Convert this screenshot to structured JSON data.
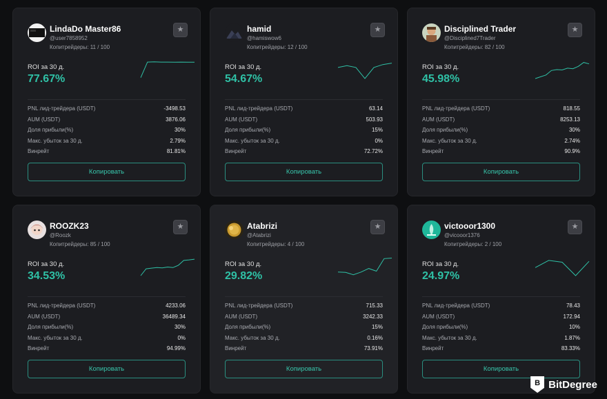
{
  "labels": {
    "roi": "ROI за 30 д.",
    "pnl": "PNL лид-трейдера (USDT)",
    "aum": "AUM (USDT)",
    "profit_share": "Доля прибыли(%)",
    "max_drawdown": "Макс. убыток за 30 д.",
    "win_rate": "Винрейт",
    "copy_button": "Копировать"
  },
  "icons": {
    "favorite": "star-icon"
  },
  "colors": {
    "accent": "#2fc1a6",
    "card": "#1c1d21",
    "background": "#0e0f11"
  },
  "traders": [
    {
      "name": "LindaDo Master86",
      "handle": "@user7858952",
      "copiers": "Копитрейдеры: 11 / 100",
      "roi": "77.67%",
      "pnl": "-3498.53",
      "aum": "3876.06",
      "profit_share": "30%",
      "max_drawdown": "2.79%",
      "win_rate": "81.81%",
      "sparkline": [
        0.05,
        0.92,
        0.93,
        0.92,
        0.92,
        0.91,
        0.92,
        0.91,
        0.91
      ],
      "avatar": "avatar-dark-screen",
      "highlighted": false
    },
    {
      "name": "hamid",
      "handle": "@hamiswow6",
      "copiers": "Копитрейдеры: 12 / 100",
      "roi": "54.67%",
      "pnl": "63.14",
      "aum": "503.93",
      "profit_share": "15%",
      "max_drawdown": "0%",
      "win_rate": "72.72%",
      "sparkline": [
        0.62,
        0.72,
        0.62,
        0.0,
        0.62,
        0.78,
        0.86
      ],
      "avatar": "avatar-dark-mountain",
      "highlighted": false
    },
    {
      "name": "Disciplined Trader",
      "handle": "@Disciplined7Trader",
      "copiers": "Копитрейдеры: 82 / 100",
      "roi": "45.98%",
      "pnl": "818.55",
      "aum": "8253.13",
      "profit_share": "30%",
      "max_drawdown": "2.74%",
      "win_rate": "90.9%",
      "sparkline": [
        0.0,
        0.1,
        0.2,
        0.45,
        0.5,
        0.48,
        0.58,
        0.55,
        0.68,
        0.9,
        0.82
      ],
      "avatar": "avatar-portrait",
      "highlighted": false
    },
    {
      "name": "ROOZK23",
      "handle": "@Roozk",
      "copiers": "Копитрейдеры: 85 / 100",
      "roi": "34.53%",
      "pnl": "4233.06",
      "aum": "36489.34",
      "profit_share": "30%",
      "max_drawdown": "0%",
      "win_rate": "94.99%",
      "sparkline": [
        0.0,
        0.38,
        0.42,
        0.45,
        0.43,
        0.48,
        0.45,
        0.58,
        0.85,
        0.88,
        0.92
      ],
      "avatar": "avatar-anime",
      "highlighted": false
    },
    {
      "name": "Atabrizi",
      "handle": "@Atabrizi",
      "copiers": "Копитрейдеры: 4 / 100",
      "roi": "29.82%",
      "pnl": "715.33",
      "aum": "3242.33",
      "profit_share": "15%",
      "max_drawdown": "0.16%",
      "win_rate": "73.91%",
      "sparkline": [
        0.2,
        0.18,
        0.05,
        0.2,
        0.4,
        0.25,
        0.95,
        0.98
      ],
      "avatar": "avatar-coin",
      "highlighted": true
    },
    {
      "name": "victooor1300",
      "handle": "@vicooor1376",
      "copiers": "Копитрейдеры: 2 / 100",
      "roi": "24.97%",
      "pnl": "78.43",
      "aum": "172.94",
      "profit_share": "10%",
      "max_drawdown": "1.87%",
      "win_rate": "83.33%",
      "sparkline": [
        0.45,
        0.85,
        0.75,
        0.0,
        0.8
      ],
      "avatar": "avatar-teal",
      "highlighted": false
    }
  ],
  "brand": {
    "text": "BitDegree",
    "mark": "B"
  }
}
